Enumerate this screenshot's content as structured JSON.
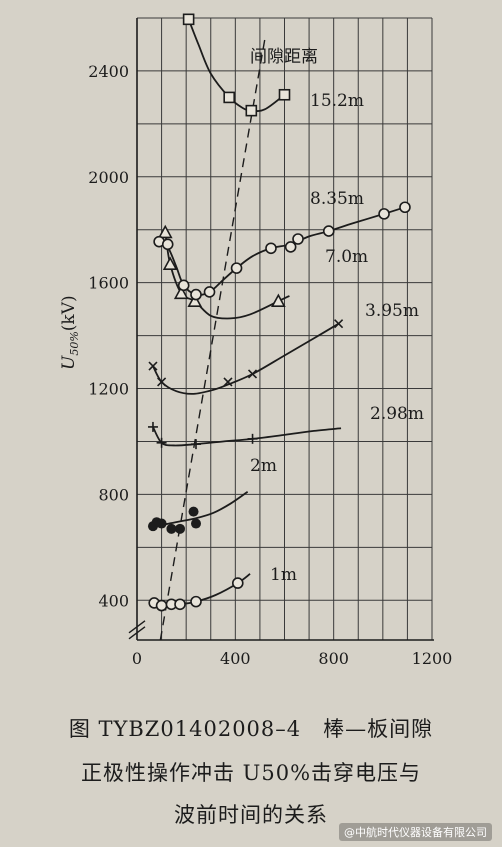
{
  "chart_data": {
    "type": "line",
    "ylabel": "U50%(kV)",
    "legend_title": "间隙距离",
    "xlim": [
      0,
      1200
    ],
    "ylim": [
      250,
      2600
    ],
    "x_ticks": [
      0,
      400,
      800,
      1200
    ],
    "x_tick_labels": [
      "0",
      "400",
      "800",
      "1200"
    ],
    "y_ticks": [
      400,
      800,
      1200,
      1600,
      2000,
      2400
    ],
    "y_tick_labels": [
      "400",
      "800",
      "1200",
      "1600",
      "2000",
      "2400"
    ],
    "grid": true,
    "series": [
      {
        "name": "15.2m",
        "marker": "square",
        "points": [
          [
            210,
            2595
          ],
          [
            375,
            2300
          ],
          [
            465,
            2250
          ],
          [
            600,
            2310
          ]
        ],
        "curve": [
          [
            210,
            2595
          ],
          [
            250,
            2500
          ],
          [
            300,
            2390
          ],
          [
            375,
            2300
          ],
          [
            430,
            2260
          ],
          [
            465,
            2250
          ],
          [
            520,
            2255
          ],
          [
            600,
            2310
          ]
        ]
      },
      {
        "name": "8.35m",
        "marker": "triangle",
        "points": [
          [
            115,
            1790
          ],
          [
            135,
            1670
          ],
          [
            180,
            1560
          ],
          [
            235,
            1530
          ],
          [
            575,
            1530
          ]
        ],
        "curve": [
          [
            115,
            1790
          ],
          [
            135,
            1670
          ],
          [
            180,
            1560
          ],
          [
            235,
            1530
          ],
          [
            300,
            1475
          ],
          [
            380,
            1465
          ],
          [
            460,
            1480
          ],
          [
            575,
            1530
          ],
          [
            620,
            1550
          ]
        ]
      },
      {
        "name": "7.0m",
        "marker": "circle",
        "points": [
          [
            90,
            1755
          ],
          [
            125,
            1745
          ],
          [
            190,
            1590
          ],
          [
            240,
            1555
          ],
          [
            295,
            1565
          ],
          [
            405,
            1655
          ],
          [
            545,
            1730
          ],
          [
            625,
            1735
          ],
          [
            655,
            1765
          ],
          [
            780,
            1795
          ],
          [
            1005,
            1860
          ],
          [
            1090,
            1885
          ]
        ],
        "curve": [
          [
            90,
            1755
          ],
          [
            125,
            1735
          ],
          [
            160,
            1660
          ],
          [
            190,
            1590
          ],
          [
            240,
            1555
          ],
          [
            295,
            1565
          ],
          [
            350,
            1610
          ],
          [
            405,
            1655
          ],
          [
            470,
            1700
          ],
          [
            545,
            1730
          ],
          [
            625,
            1745
          ],
          [
            700,
            1775
          ],
          [
            780,
            1795
          ],
          [
            880,
            1825
          ],
          [
            1005,
            1860
          ],
          [
            1090,
            1885
          ]
        ]
      },
      {
        "name": "3.95m",
        "marker": "cross",
        "points": [
          [
            65,
            1285
          ],
          [
            100,
            1225
          ],
          [
            370,
            1225
          ],
          [
            470,
            1255
          ],
          [
            820,
            1445
          ]
        ],
        "curve": [
          [
            65,
            1285
          ],
          [
            100,
            1225
          ],
          [
            160,
            1190
          ],
          [
            230,
            1180
          ],
          [
            310,
            1195
          ],
          [
            370,
            1215
          ],
          [
            470,
            1255
          ],
          [
            600,
            1325
          ],
          [
            720,
            1390
          ],
          [
            820,
            1445
          ]
        ]
      },
      {
        "name": "2.98m",
        "marker": "plus",
        "points": [
          [
            65,
            1055
          ],
          [
            100,
            995
          ],
          [
            240,
            990
          ],
          [
            470,
            1010
          ]
        ],
        "curve": [
          [
            65,
            1055
          ],
          [
            100,
            995
          ],
          [
            150,
            985
          ],
          [
            240,
            990
          ],
          [
            350,
            1000
          ],
          [
            470,
            1010
          ],
          [
            600,
            1025
          ],
          [
            720,
            1040
          ],
          [
            830,
            1050
          ]
        ]
      },
      {
        "name": "2m",
        "marker": "filled-circle",
        "points": [
          [
            65,
            680
          ],
          [
            80,
            695
          ],
          [
            100,
            690
          ],
          [
            140,
            670
          ],
          [
            175,
            670
          ],
          [
            230,
            735
          ],
          [
            240,
            690
          ]
        ],
        "curve": [
          [
            65,
            680
          ],
          [
            120,
            688
          ],
          [
            175,
            698
          ],
          [
            240,
            710
          ],
          [
            310,
            730
          ],
          [
            380,
            765
          ],
          [
            450,
            810
          ]
        ]
      },
      {
        "name": "1m",
        "marker": "circle",
        "points": [
          [
            70,
            390
          ],
          [
            100,
            380
          ],
          [
            140,
            385
          ],
          [
            175,
            385
          ],
          [
            240,
            395
          ],
          [
            410,
            465
          ]
        ],
        "curve": [
          [
            70,
            390
          ],
          [
            100,
            380
          ],
          [
            140,
            385
          ],
          [
            175,
            385
          ],
          [
            240,
            395
          ],
          [
            320,
            420
          ],
          [
            410,
            465
          ],
          [
            460,
            500
          ]
        ]
      }
    ],
    "dashed_line": [
      [
        95,
        250
      ],
      [
        520,
        2520
      ]
    ]
  },
  "caption": {
    "line1": "图 TYBZ01402008–4　棒—板间隙",
    "line2": "正极性操作冲击 U50%击穿电压与",
    "line3": "波前时间的关系"
  },
  "watermark": "@中航时代仪器设备有限公司"
}
